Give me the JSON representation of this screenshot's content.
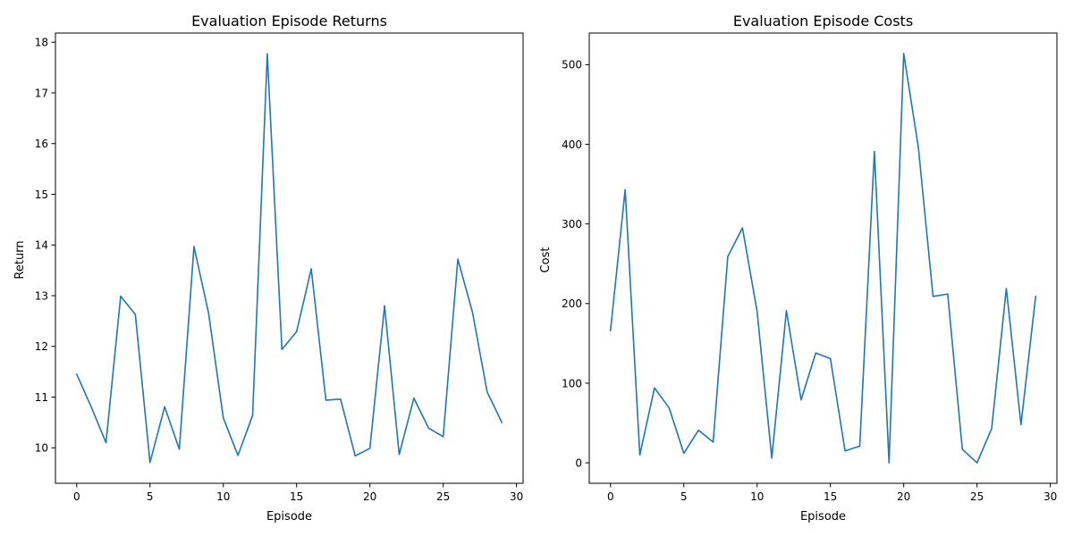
{
  "colors": {
    "series": "#1f77b4",
    "axis": "#000000",
    "background": "#ffffff"
  },
  "chart_data": [
    {
      "type": "line",
      "title": "Evaluation Episode Returns",
      "xlabel": "Episode",
      "ylabel": "Return",
      "grid": false,
      "xlim": [
        -1.45,
        30.45
      ],
      "ylim": [
        9.3,
        18.18
      ],
      "xticks": [
        0,
        5,
        10,
        15,
        20,
        25,
        30
      ],
      "yticks": [
        10,
        11,
        12,
        13,
        14,
        15,
        16,
        17,
        18
      ],
      "series": [
        {
          "x": [
            0,
            1,
            2,
            3,
            4,
            5,
            6,
            7,
            8,
            9,
            10,
            11,
            12,
            13,
            14,
            15,
            16,
            17,
            18,
            19,
            20,
            21,
            22,
            23,
            24,
            25,
            26,
            27,
            28,
            29
          ],
          "y": [
            11.45,
            10.8,
            10.1,
            12.99,
            12.63,
            9.71,
            10.81,
            9.97,
            13.97,
            12.65,
            10.59,
            9.85,
            10.64,
            17.77,
            11.94,
            12.29,
            13.53,
            10.94,
            10.96,
            9.84,
            9.99,
            12.8,
            9.87,
            10.98,
            10.39,
            10.22,
            13.72,
            12.67,
            11.1,
            10.5
          ]
        }
      ]
    },
    {
      "type": "line",
      "title": "Evaluation Episode Costs",
      "xlabel": "Episode",
      "ylabel": "Cost",
      "grid": false,
      "xlim": [
        -1.45,
        30.45
      ],
      "ylim": [
        -25.7,
        539.7
      ],
      "xticks": [
        0,
        5,
        10,
        15,
        20,
        25,
        30
      ],
      "yticks": [
        0,
        100,
        200,
        300,
        400,
        500
      ],
      "series": [
        {
          "x": [
            0,
            1,
            2,
            3,
            4,
            5,
            6,
            7,
            8,
            9,
            10,
            11,
            12,
            13,
            14,
            15,
            16,
            17,
            18,
            19,
            20,
            21,
            22,
            23,
            24,
            25,
            26,
            27,
            28,
            29
          ],
          "y": [
            166,
            343,
            10,
            94,
            69,
            12,
            41,
            26,
            259,
            295,
            190,
            6,
            191,
            79,
            138,
            131,
            15,
            21,
            391,
            0,
            514,
            396,
            209,
            212,
            17,
            0,
            43,
            219,
            48,
            209
          ]
        }
      ]
    }
  ]
}
